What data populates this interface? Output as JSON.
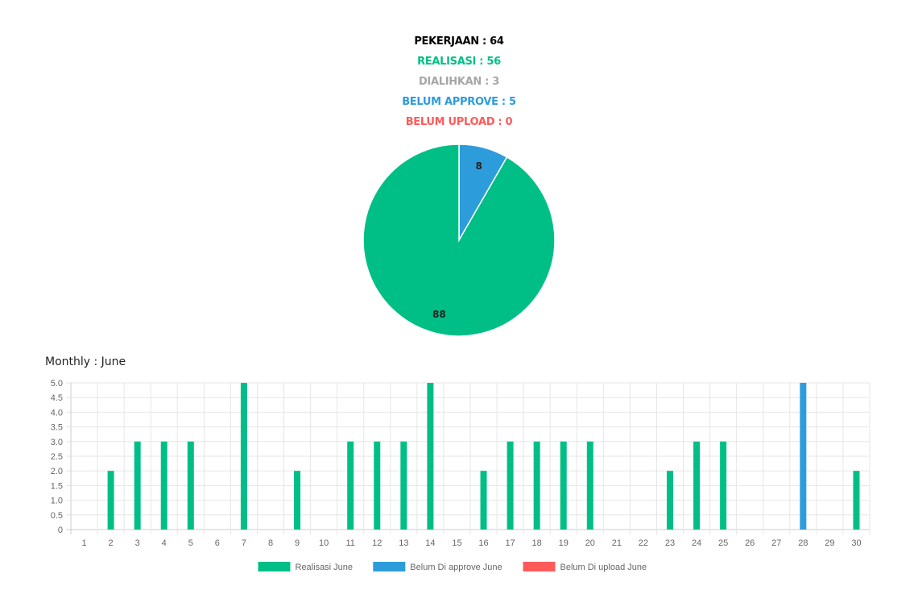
{
  "summary": {
    "pekerjaan": {
      "text": "PEKERJAAN : 64",
      "color": "#000000"
    },
    "realisasi": {
      "text": "REALISASI : 56",
      "color": "#00bf86"
    },
    "dialihkan": {
      "text": "DIALIHKAN : 3",
      "color": "#a6a6a6"
    },
    "belum_approve": {
      "text": "BELUM APPROVE : 5",
      "color": "#2d9cdb"
    },
    "belum_upload": {
      "text": "BELUM UPLOAD : 0",
      "color": "#ff5a5a"
    }
  },
  "monthly": {
    "title": "Monthly : June"
  },
  "chart_data": [
    {
      "type": "pie",
      "slices": [
        {
          "label": "8",
          "value": 8,
          "color": "#2d9cdb"
        },
        {
          "label": "88",
          "value": 88,
          "color": "#00bf86"
        }
      ]
    },
    {
      "type": "bar",
      "categories": [
        "1",
        "2",
        "3",
        "4",
        "5",
        "6",
        "7",
        "8",
        "9",
        "10",
        "11",
        "12",
        "13",
        "14",
        "15",
        "16",
        "17",
        "18",
        "19",
        "20",
        "21",
        "22",
        "23",
        "24",
        "25",
        "26",
        "27",
        "28",
        "29",
        "30"
      ],
      "series": [
        {
          "name": "Realisasi June",
          "color": "#00bf86",
          "values": [
            0,
            2,
            3,
            3,
            3,
            0,
            5,
            0,
            2,
            0,
            3,
            3,
            3,
            5,
            0,
            2,
            3,
            3,
            3,
            3,
            0,
            0,
            2,
            3,
            3,
            0,
            0,
            0,
            0,
            2
          ]
        },
        {
          "name": "Belum Di approve June",
          "color": "#2d9cdb",
          "values": [
            0,
            0,
            0,
            0,
            0,
            0,
            0,
            0,
            0,
            0,
            0,
            0,
            0,
            0,
            0,
            0,
            0,
            0,
            0,
            0,
            0,
            0,
            0,
            0,
            0,
            0,
            0,
            5,
            0,
            0
          ]
        },
        {
          "name": "Belum Di upload June",
          "color": "#ff5a5a",
          "values": [
            0,
            0,
            0,
            0,
            0,
            0,
            0,
            0,
            0,
            0,
            0,
            0,
            0,
            0,
            0,
            0,
            0,
            0,
            0,
            0,
            0,
            0,
            0,
            0,
            0,
            0,
            0,
            0,
            0,
            0
          ]
        }
      ],
      "ylim": [
        0,
        5
      ],
      "yticks": [
        "0",
        "0.5",
        "1.0",
        "1.5",
        "2.0",
        "2.5",
        "3.0",
        "3.5",
        "4.0",
        "4.5",
        "5.0"
      ],
      "grid": true,
      "legend_position": "bottom"
    }
  ]
}
